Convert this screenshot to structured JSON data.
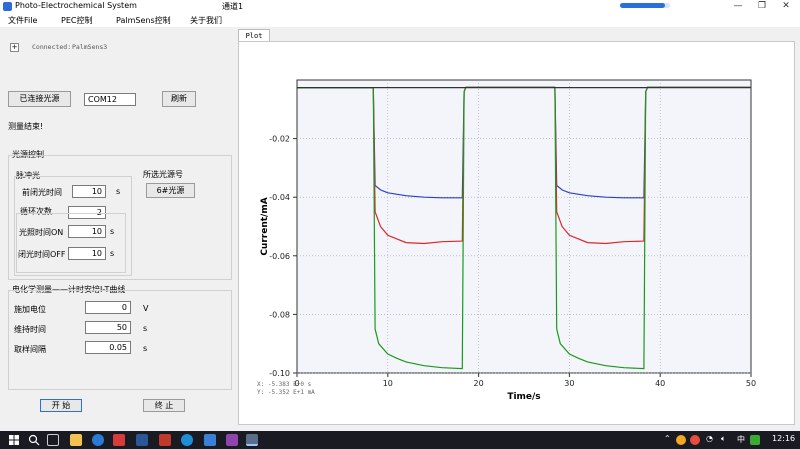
{
  "window": {
    "title": "Photo-Electrochemical System",
    "subtitle": "通道1",
    "progress_fraction": 0.9,
    "accent": "#2a6fdb"
  },
  "menu": [
    "文件File",
    "PEC控制",
    "PalmSens控制",
    "关于我们"
  ],
  "connection": {
    "expand_glyph": "+",
    "label": "Connected:",
    "device": "PalmSens3"
  },
  "light_source": {
    "connect_button": "已连接光源",
    "port": "COM12",
    "refresh_button": "刷新"
  },
  "status_text": "测量结束!",
  "light_control": {
    "group_title": "光源控制",
    "pulse_title": "脉冲光",
    "pre_off_label": "前闭光时间",
    "pre_off_value": "10",
    "pre_off_unit": "s",
    "cycles_label": "循环次数",
    "cycles_value": "2",
    "on_label": "光照时间ON",
    "on_value": "10",
    "on_unit": "s",
    "off_label": "闭光时间OFF",
    "off_value": "10",
    "off_unit": "s",
    "selected_label": "所选光源号",
    "selected_value": "6#光源"
  },
  "echem": {
    "group_title": "电化学测量——计时安培I-T曲线",
    "potential_label": "施加电位",
    "potential_value": "0",
    "potential_unit": "V",
    "hold_label": "维持时间",
    "hold_value": "50",
    "hold_unit": "s",
    "interval_label": "取样间隔",
    "interval_value": "0.05",
    "interval_unit": "s"
  },
  "actions": {
    "start": "开 始",
    "stop": "终 止"
  },
  "plot_tab": "Plot",
  "readout": {
    "x": "X: -5.383 E+0 s",
    "y": "Y: -5.352 E+1 mA"
  },
  "chart_data": {
    "type": "line",
    "xlabel": "Time/s",
    "ylabel": "Current/mA",
    "xlim": [
      0,
      50
    ],
    "ylim": [
      -0.1,
      0
    ],
    "xticks": [
      0,
      10,
      20,
      30,
      40,
      50
    ],
    "yticks": [
      -0.02,
      -0.04,
      -0.06,
      -0.08,
      -0.1
    ],
    "ytick_labels": [
      "-0.02",
      "-0.04",
      "-0.06",
      "-0.08",
      "-0.10"
    ],
    "grid": true,
    "series": [
      {
        "color": "#2a3fd0",
        "x": [
          0,
          8.4,
          8.6,
          9.2,
          10,
          12,
          14,
          16,
          18.2,
          18.4,
          18.6,
          20,
          28.2,
          28.4,
          28.6,
          29.2,
          30,
          32,
          34,
          36,
          38.2,
          38.4,
          38.6,
          40,
          50
        ],
        "y": [
          -0.0027,
          -0.0027,
          -0.036,
          -0.0375,
          -0.0385,
          -0.0395,
          -0.04,
          -0.0402,
          -0.0402,
          -0.004,
          -0.0025,
          -0.0025,
          -0.0025,
          -0.0025,
          -0.036,
          -0.0375,
          -0.0385,
          -0.0395,
          -0.04,
          -0.0402,
          -0.0402,
          -0.004,
          -0.0025,
          -0.0025,
          -0.0025
        ]
      },
      {
        "color": "#e02525",
        "x": [
          0,
          8.4,
          8.6,
          9.2,
          10,
          12,
          14,
          16,
          18.2,
          18.4,
          18.6,
          20,
          28.2,
          28.4,
          28.6,
          29.2,
          30,
          32,
          34,
          36,
          38.2,
          38.4,
          38.6,
          40,
          50
        ],
        "y": [
          -0.0027,
          -0.0027,
          -0.045,
          -0.05,
          -0.053,
          -0.0555,
          -0.0558,
          -0.0552,
          -0.055,
          -0.004,
          -0.0025,
          -0.0025,
          -0.0025,
          -0.0025,
          -0.045,
          -0.05,
          -0.053,
          -0.0555,
          -0.0558,
          -0.0552,
          -0.055,
          -0.004,
          -0.0025,
          -0.0025,
          -0.0025
        ]
      },
      {
        "color": "#1a9a1a",
        "x": [
          0,
          8.4,
          8.6,
          9.0,
          10,
          11,
          12,
          14,
          16,
          18.2,
          18.4,
          18.6,
          20,
          28.2,
          28.4,
          28.6,
          29,
          30,
          31,
          32,
          34,
          36,
          38.2,
          38.4,
          38.6,
          40,
          50
        ],
        "y": [
          -0.0027,
          -0.0027,
          -0.085,
          -0.09,
          -0.0935,
          -0.095,
          -0.0962,
          -0.0975,
          -0.0982,
          -0.0985,
          -0.004,
          -0.0025,
          -0.0025,
          -0.0025,
          -0.0025,
          -0.085,
          -0.09,
          -0.0935,
          -0.095,
          -0.0962,
          -0.0975,
          -0.0982,
          -0.0985,
          -0.004,
          -0.0025,
          -0.0025,
          -0.0025
        ]
      },
      {
        "color": "#333333",
        "x": [
          0,
          8.4,
          8.42,
          18.4,
          18.42,
          28.4,
          28.42,
          38.4,
          38.42,
          50
        ],
        "y": [
          -0.0026,
          -0.0026,
          -0.0026,
          -0.0026,
          -0.0026,
          -0.0026,
          -0.0026,
          -0.0026,
          -0.0026,
          -0.0026
        ]
      }
    ]
  },
  "taskbar": {
    "clock": "12:16",
    "icons": [
      "windows-start-icon",
      "search-icon",
      "task-view-icon",
      "folder-icon",
      "ie-icon",
      "app-red-icon",
      "app-word-icon",
      "app-cad-icon",
      "edge-icon",
      "visual-studio-icon",
      "app-purple-icon",
      "app-active-icon"
    ]
  }
}
